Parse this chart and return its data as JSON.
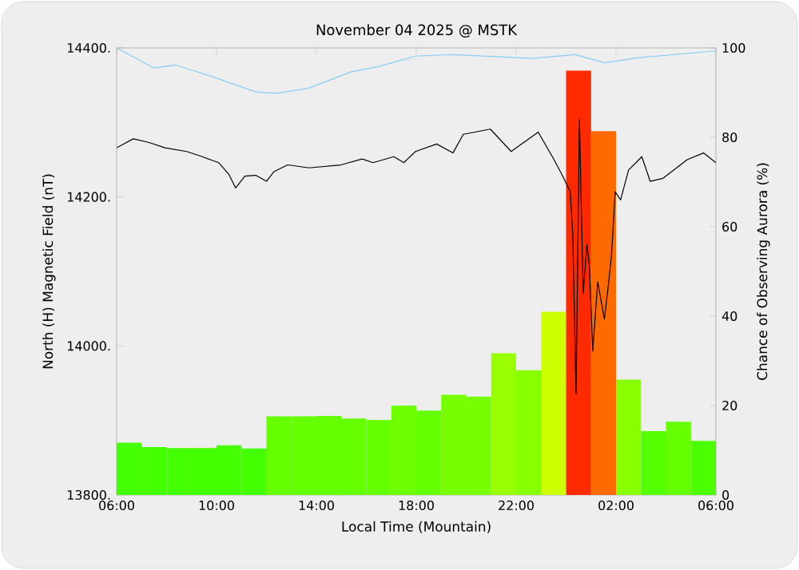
{
  "chart_data": {
    "type": "bar",
    "title": "November 04 2025 @ MSTK",
    "xlabel": "Local Time (Mountain)",
    "ylabel": "North (H) Magnetic Field (nT)",
    "y2label": "Chance of Observing Aurora (%)",
    "xlim": [
      "2025-11-04T06:00",
      "2025-11-05T06:00"
    ],
    "xticks": [
      {
        "value": "2025-11-04T06:00",
        "label": "06:00"
      },
      {
        "value": "2025-11-04T10:00",
        "label": "10:00"
      },
      {
        "value": "2025-11-04T14:00",
        "label": "14:00"
      },
      {
        "value": "2025-11-04T18:00",
        "label": "18:00"
      },
      {
        "value": "2025-11-04T22:00",
        "label": "22:00"
      },
      {
        "value": "2025-11-05T02:00",
        "label": "02:00"
      },
      {
        "value": "2025-11-05T06:00",
        "label": "06:00"
      }
    ],
    "ylim": [
      13800,
      14400
    ],
    "yticks": [
      {
        "value": 13800,
        "label": "13800."
      },
      {
        "value": 14000,
        "label": "14000."
      },
      {
        "value": 14200,
        "label": "14200."
      },
      {
        "value": 14400,
        "label": "14400."
      }
    ],
    "y2lim": [
      0,
      100
    ],
    "y2ticks": [
      0,
      20,
      40,
      60,
      80,
      100
    ],
    "grid": false,
    "series": [
      {
        "axis": "y2",
        "x": [
          "2025-11-04T06:30",
          "2025-11-04T07:30",
          "2025-11-04T08:30",
          "2025-11-04T09:30",
          "2025-11-04T10:30",
          "2025-11-04T11:30",
          "2025-11-04T12:30",
          "2025-11-04T13:30",
          "2025-11-04T14:30",
          "2025-11-04T15:30",
          "2025-11-04T16:30",
          "2025-11-04T17:30",
          "2025-11-04T18:30",
          "2025-11-04T19:30",
          "2025-11-04T20:30",
          "2025-11-04T21:30",
          "2025-11-04T22:30",
          "2025-11-04T23:30",
          "2025-11-05T00:30",
          "2025-11-05T01:30",
          "2025-11-05T02:30",
          "2025-11-05T03:30",
          "2025-11-05T04:30",
          "2025-11-05T05:30"
        ],
        "values": [
          11.7,
          10.7,
          10.5,
          10.5,
          11.1,
          10.4,
          17.6,
          17.6,
          17.7,
          17.1,
          16.8,
          20,
          18.9,
          22.4,
          22,
          31.7,
          27.9,
          41,
          94.9,
          81.4,
          25.8,
          14.3,
          16.4,
          12.1
        ],
        "colors": [
          "#44ff00",
          "#44ff00",
          "#44ff00",
          "#44ff00",
          "#44ff00",
          "#44ff00",
          "#66ff00",
          "#66ff00",
          "#66ff00",
          "#66ff00",
          "#66ff00",
          "#6eff00",
          "#66ff00",
          "#77ff00",
          "#77ff00",
          "#99ff00",
          "#88ff00",
          "#ccff00",
          "#ff2a00",
          "#ff6a00",
          "#88ff00",
          "#55ff00",
          "#66ff00",
          "#4cff00"
        ]
      },
      {
        "type": "line",
        "color": "#000000",
        "x": [
          "2025-11-04T06:00",
          "2025-11-04T06:40",
          "2025-11-04T07:18",
          "2025-11-04T07:56",
          "2025-11-04T08:48",
          "2025-11-04T09:26",
          "2025-11-04T10:05",
          "2025-11-04T10:30",
          "2025-11-04T10:46",
          "2025-11-04T11:08",
          "2025-11-04T11:34",
          "2025-11-04T12:00",
          "2025-11-04T12:18",
          "2025-11-04T12:51",
          "2025-11-04T13:42",
          "2025-11-04T14:59",
          "2025-11-04T15:50",
          "2025-11-04T16:16",
          "2025-11-04T17:06",
          "2025-11-04T17:30",
          "2025-11-04T17:58",
          "2025-11-04T18:49",
          "2025-11-04T19:28",
          "2025-11-04T19:53",
          "2025-11-04T20:58",
          "2025-11-04T21:48",
          "2025-11-04T22:53",
          "2025-11-04T23:31",
          "2025-11-04T23:50",
          "2025-11-05T00:10",
          "2025-11-05T00:16",
          "2025-11-05T00:24",
          "2025-11-05T00:32",
          "2025-11-05T00:41",
          "2025-11-05T00:50",
          "2025-11-05T00:56",
          "2025-11-05T01:04",
          "2025-11-05T01:16",
          "2025-11-05T01:32",
          "2025-11-05T01:41",
          "2025-11-05T01:49",
          "2025-11-05T01:58",
          "2025-11-05T02:11",
          "2025-11-05T02:30",
          "2025-11-05T03:02",
          "2025-11-05T03:22",
          "2025-11-05T03:53",
          "2025-11-05T04:51",
          "2025-11-05T05:30",
          "2025-11-05T06:00"
        ],
        "values": [
          14266,
          14278,
          14273,
          14266,
          14261,
          14254,
          14246,
          14230,
          14212,
          14228,
          14229,
          14221,
          14234,
          14243,
          14239,
          14243,
          14251,
          14246,
          14254,
          14246,
          14261,
          14271,
          14259,
          14284,
          14291,
          14261,
          14287,
          14250,
          14230,
          14207,
          14150,
          13936,
          14304,
          14071,
          14136,
          14107,
          13993,
          14086,
          14036,
          14079,
          14121,
          14207,
          14196,
          14236,
          14254,
          14221,
          14225,
          14250,
          14259,
          14246
        ]
      },
      {
        "type": "line",
        "color": "#87cefa",
        "x": [
          "2025-11-04T06:00",
          "2025-11-04T07:30",
          "2025-11-04T08:22",
          "2025-11-04T09:52",
          "2025-11-04T11:34",
          "2025-11-04T12:25",
          "2025-11-04T13:42",
          "2025-11-04T15:24",
          "2025-11-04T16:29",
          "2025-11-04T17:58",
          "2025-11-04T19:28",
          "2025-11-04T22:40",
          "2025-11-05T00:22",
          "2025-11-05T01:32",
          "2025-11-05T02:56",
          "2025-11-05T06:00"
        ],
        "values": [
          14400,
          14373,
          14377,
          14361,
          14341,
          14339,
          14346,
          14368,
          14375,
          14389,
          14391,
          14386,
          14391,
          14380,
          14387,
          14396
        ]
      }
    ]
  }
}
